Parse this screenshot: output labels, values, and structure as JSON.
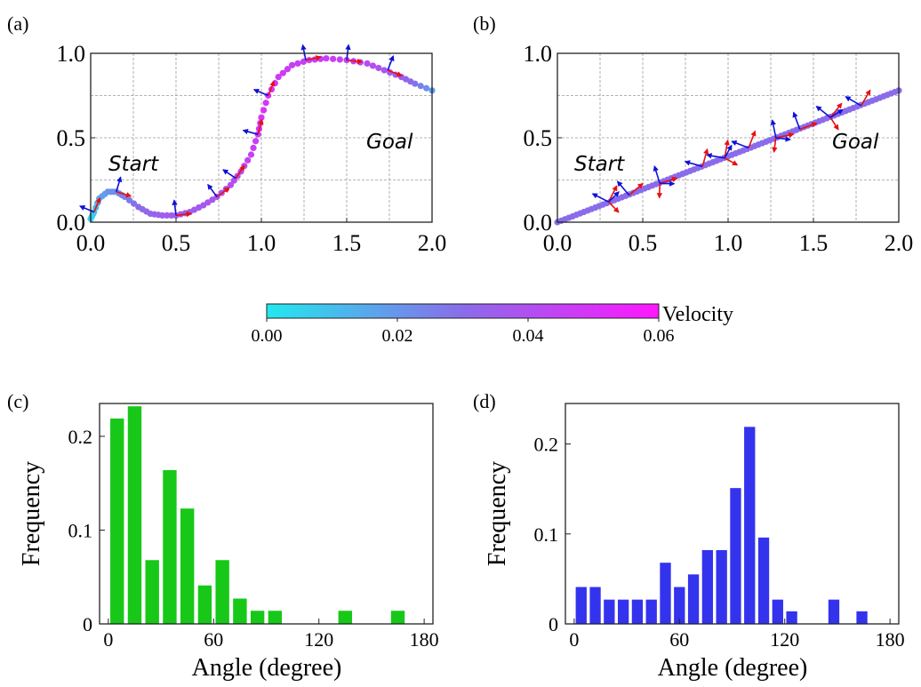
{
  "colorbar": {
    "label": "Velocity",
    "ticks": [
      "0.00",
      "0.02",
      "0.04",
      "0.06"
    ],
    "range": [
      0,
      0.06
    ],
    "colors": [
      "#22e8ee",
      "#8a6cea",
      "#ff16ff"
    ]
  },
  "chart_data": [
    {
      "panel": "(a)",
      "type": "scatter",
      "xlim": [
        0,
        2
      ],
      "ylim": [
        0,
        1
      ],
      "xticks": [
        "0.0",
        "0.5",
        "1.0",
        "1.5",
        "2.0"
      ],
      "yticks": [
        "0.0",
        "0.5",
        "1.0"
      ],
      "grid": true,
      "annotations": [
        "Start",
        "Goal"
      ],
      "path": [
        [
          0.0,
          0.02
        ],
        [
          0.02,
          0.06
        ],
        [
          0.05,
          0.14
        ],
        [
          0.1,
          0.18
        ],
        [
          0.15,
          0.18
        ],
        [
          0.2,
          0.15
        ],
        [
          0.28,
          0.09
        ],
        [
          0.35,
          0.05
        ],
        [
          0.42,
          0.04
        ],
        [
          0.5,
          0.04
        ],
        [
          0.58,
          0.06
        ],
        [
          0.66,
          0.1
        ],
        [
          0.74,
          0.15
        ],
        [
          0.82,
          0.22
        ],
        [
          0.88,
          0.3
        ],
        [
          0.94,
          0.4
        ],
        [
          0.98,
          0.52
        ],
        [
          1.0,
          0.62
        ],
        [
          1.04,
          0.75
        ],
        [
          1.1,
          0.86
        ],
        [
          1.18,
          0.93
        ],
        [
          1.28,
          0.96
        ],
        [
          1.38,
          0.97
        ],
        [
          1.5,
          0.96
        ],
        [
          1.62,
          0.94
        ],
        [
          1.72,
          0.9
        ],
        [
          1.82,
          0.86
        ],
        [
          1.9,
          0.82
        ],
        [
          2.0,
          0.78
        ]
      ],
      "velocity": [
        0.005,
        0.008,
        0.015,
        0.02,
        0.022,
        0.025,
        0.03,
        0.032,
        0.035,
        0.036,
        0.036,
        0.037,
        0.038,
        0.04,
        0.042,
        0.045,
        0.048,
        0.05,
        0.05,
        0.048,
        0.046,
        0.045,
        0.046,
        0.044,
        0.042,
        0.038,
        0.034,
        0.028,
        0.018
      ],
      "arrow_anchors": [
        [
          0.02,
          0.06
        ],
        [
          0.15,
          0.18
        ],
        [
          0.5,
          0.04
        ],
        [
          0.74,
          0.15
        ],
        [
          0.85,
          0.26
        ],
        [
          0.98,
          0.52
        ],
        [
          1.04,
          0.75
        ],
        [
          1.26,
          0.96
        ],
        [
          1.5,
          0.96
        ],
        [
          1.74,
          0.9
        ]
      ]
    },
    {
      "panel": "(b)",
      "type": "scatter",
      "xlim": [
        0,
        2
      ],
      "ylim": [
        0,
        1
      ],
      "xticks": [
        "0.0",
        "0.5",
        "1.0",
        "1.5",
        "2.0"
      ],
      "yticks": [
        "0.0",
        "0.5",
        "1.0"
      ],
      "grid": true,
      "annotations": [
        "Start",
        "Goal"
      ],
      "path_start": [
        0,
        0
      ],
      "path_end": [
        2.0,
        0.78
      ],
      "velocity": 0.03,
      "arrow_anchors": [
        [
          0.3,
          0.12
        ],
        [
          0.42,
          0.16
        ],
        [
          0.6,
          0.23
        ],
        [
          0.85,
          0.33
        ],
        [
          0.98,
          0.38
        ],
        [
          1.12,
          0.44
        ],
        [
          1.28,
          0.5
        ],
        [
          1.42,
          0.55
        ],
        [
          1.6,
          0.62
        ],
        [
          1.78,
          0.69
        ]
      ]
    },
    {
      "panel": "(c)",
      "type": "bar",
      "xlabel": "Angle (degree)",
      "ylabel": "Frequency",
      "xlim": [
        -5,
        185
      ],
      "ylim": [
        0,
        0.235
      ],
      "xticks": [
        "0",
        "60",
        "120",
        "180"
      ],
      "yticks": [
        "0",
        "0.1",
        "0.2"
      ],
      "color": "#18c818",
      "bin_width": 10,
      "x": [
        5,
        15,
        25,
        35,
        45,
        55,
        65,
        75,
        85,
        95,
        135,
        165
      ],
      "values": [
        0.219,
        0.232,
        0.068,
        0.164,
        0.123,
        0.041,
        0.068,
        0.027,
        0.014,
        0.014,
        0.014,
        0.014
      ]
    },
    {
      "panel": "(d)",
      "type": "bar",
      "xlabel": "Angle (degree)",
      "ylabel": "Frequency",
      "xlim": [
        -5,
        185
      ],
      "ylim": [
        0,
        0.245
      ],
      "xticks": [
        "0",
        "60",
        "120",
        "180"
      ],
      "yticks": [
        "0",
        "0.1",
        "0.2"
      ],
      "color": "#3333ee",
      "bin_width": 8,
      "x": [
        4,
        12,
        20,
        28,
        36,
        44,
        52,
        60,
        68,
        76,
        84,
        92,
        100,
        108,
        116,
        124,
        148,
        156
      ],
      "values": [
        0.041,
        0.041,
        0.027,
        0.027,
        0.027,
        0.027,
        0.068,
        0.041,
        0.055,
        0.082,
        0.082,
        0.151,
        0.219,
        0.096,
        0.027,
        0.014,
        0,
        0
      ],
      "extra_x": [
        148,
        164
      ],
      "extra_values": [
        0.027,
        0.014
      ]
    }
  ]
}
